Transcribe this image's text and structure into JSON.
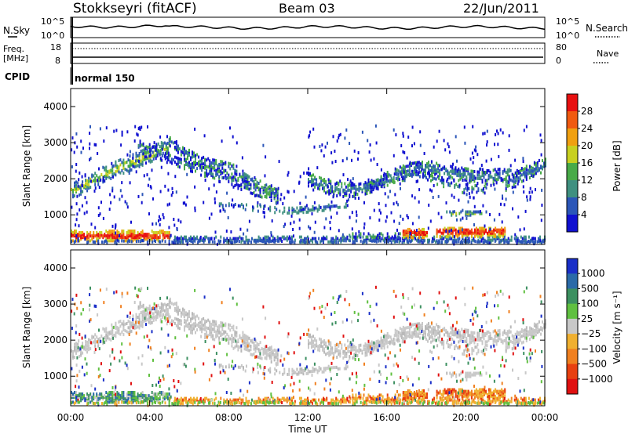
{
  "header": {
    "title": "Stokkseyri (fitACF)",
    "beam": "Beam 03",
    "date": "22/Jun/2011"
  },
  "top_panels": {
    "nsky_label": "N.Sky",
    "nsearch_label": "N.Search",
    "noise_ticks_left": [
      "10^5",
      "10^0"
    ],
    "noise_ticks_right": [
      "10^5",
      "10^0"
    ],
    "freq_label_1": "Freq.",
    "freq_label_2": "[MHz]",
    "freq_ticks": [
      "18",
      "8"
    ],
    "nave_label": "Nave",
    "nave_ticks": [
      "80",
      "0"
    ],
    "cpid_label": "CPID",
    "cpid_value": "normal 150"
  },
  "chart_data": [
    {
      "type": "heatmap",
      "name": "power",
      "ylabel": "Slant Range [km]",
      "yticks": [
        "1000",
        "2000",
        "3000",
        "4000"
      ],
      "ylim": [
        180,
        4500
      ],
      "xlim": [
        0,
        24
      ],
      "colorbar_label": "Power [dB]",
      "colorbar_ticks": [
        "4",
        "8",
        "12",
        "16",
        "20",
        "24",
        "28"
      ],
      "colorbar_colors": [
        "#1010d0",
        "#2b56b8",
        "#3f9080",
        "#48aa48",
        "#c8d020",
        "#f0a010",
        "#f05a10",
        "#e81010"
      ],
      "grid": false
    },
    {
      "type": "heatmap",
      "name": "velocity",
      "ylabel": "Slant Range [km]",
      "yticks": [
        "1000",
        "2000",
        "3000",
        "4000"
      ],
      "ylim": [
        180,
        4500
      ],
      "xlim": [
        0,
        24
      ],
      "xlabel": "Time UT",
      "xticks": [
        "00:00",
        "04:00",
        "08:00",
        "12:00",
        "16:00",
        "20:00",
        "00:00"
      ],
      "colorbar_label": "Velocity [m s⁻¹]",
      "colorbar_ticks": [
        "1000",
        "500",
        "100",
        "25",
        "−25",
        "−100",
        "−500",
        "−1000"
      ],
      "colorbar_colors": [
        "#1a2fc8",
        "#2a6aa8",
        "#3c9060",
        "#60c040",
        "#c8c8c8",
        "#f0b030",
        "#f08020",
        "#e84010",
        "#e01010"
      ],
      "grid": false
    }
  ]
}
